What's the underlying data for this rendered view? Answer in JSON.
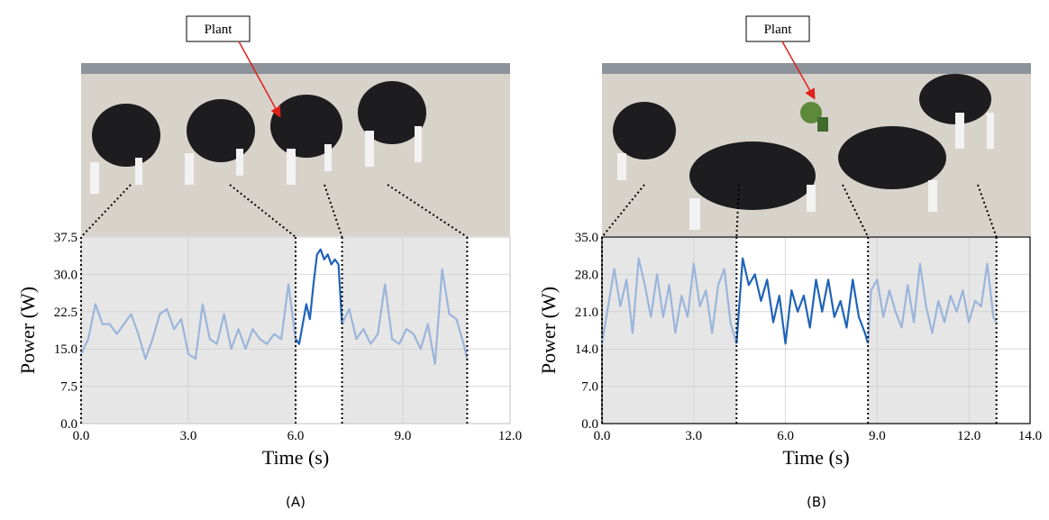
{
  "chart_data": [
    {
      "type": "line",
      "panel_label": "(A)",
      "photo_label": "Plant",
      "xlabel": "Time (s)",
      "ylabel": "Power (W)",
      "xlim": [
        0,
        12
      ],
      "ylim": [
        0,
        37.5
      ],
      "xticks": [
        {
          "value": 0,
          "label": "0.0"
        },
        {
          "value": 3,
          "label": "3.0"
        },
        {
          "value": 6,
          "label": "6.0"
        },
        {
          "value": 9,
          "label": "9.0"
        },
        {
          "value": 12,
          "label": "12.0"
        }
      ],
      "yticks": [
        {
          "value": 0,
          "label": "0.0"
        },
        7.5,
        {
          "value": 15,
          "label": "15.0"
        },
        22.5,
        {
          "value": 30,
          "label": "30.0"
        },
        37.5
      ],
      "grid": true,
      "shaded_regions": [
        [
          0,
          6
        ],
        [
          7.3,
          10.8
        ]
      ],
      "series": [
        {
          "color": "#9bb5db",
          "x": [
            0,
            0.2,
            0.4,
            0.6,
            0.8,
            1.0,
            1.2,
            1.4,
            1.6,
            1.8,
            2.0,
            2.2,
            2.4,
            2.6,
            2.8,
            3.0,
            3.2,
            3.4,
            3.6,
            3.8,
            4.0,
            4.2,
            4.4,
            4.6,
            4.8,
            5.0,
            5.2,
            5.4,
            5.6,
            5.8,
            6.0
          ],
          "values": [
            14,
            17,
            24,
            20,
            20,
            18,
            20,
            22,
            18,
            13,
            17,
            22,
            23,
            19,
            21,
            14,
            13,
            24,
            17,
            16,
            22,
            15,
            19,
            15,
            19,
            17,
            16,
            18,
            17,
            28,
            17
          ]
        },
        {
          "color": "#1f63b8",
          "x": [
            6.0,
            6.1,
            6.2,
            6.3,
            6.4,
            6.5,
            6.6,
            6.7,
            6.8,
            6.9,
            7.0,
            7.1,
            7.2,
            7.3
          ],
          "values": [
            17,
            16,
            20,
            24,
            21,
            28,
            34,
            35,
            33,
            34,
            32,
            33,
            32,
            20
          ]
        },
        {
          "color": "#9bb5db",
          "x": [
            7.3,
            7.5,
            7.7,
            7.9,
            8.1,
            8.3,
            8.5,
            8.7,
            8.9,
            9.1,
            9.3,
            9.5,
            9.7,
            9.9,
            10.1,
            10.3,
            10.5,
            10.7,
            10.8
          ],
          "values": [
            20,
            23,
            17,
            19,
            16,
            18,
            28,
            17,
            16,
            19,
            18,
            15,
            20,
            12,
            31,
            22,
            21,
            16,
            13
          ]
        }
      ]
    },
    {
      "type": "line",
      "panel_label": "(B)",
      "photo_label": "Plant",
      "xlabel": "Time (s)",
      "ylabel": "Power (W)",
      "xlim": [
        0,
        14
      ],
      "ylim": [
        0,
        35
      ],
      "xticks": [
        {
          "value": 0,
          "label": "0.0"
        },
        {
          "value": 3,
          "label": "3.0"
        },
        {
          "value": 6,
          "label": "6.0"
        },
        {
          "value": 9,
          "label": "9.0"
        },
        {
          "value": 12,
          "label": "12.0"
        },
        {
          "value": 14,
          "label": "14.0"
        }
      ],
      "yticks": [
        {
          "value": 0,
          "label": "0.0"
        },
        {
          "value": 7,
          "label": "7.0"
        },
        {
          "value": 14,
          "label": "14.0"
        },
        {
          "value": 21,
          "label": "21.0"
        },
        {
          "value": 28,
          "label": "28.0"
        },
        {
          "value": 35,
          "label": "35.0"
        }
      ],
      "grid": true,
      "shaded_regions": [
        [
          0,
          4.4
        ],
        [
          8.7,
          12.9
        ]
      ],
      "series": [
        {
          "color": "#9bb5db",
          "x": [
            0,
            0.2,
            0.4,
            0.6,
            0.8,
            1.0,
            1.2,
            1.4,
            1.6,
            1.8,
            2.0,
            2.2,
            2.4,
            2.6,
            2.8,
            3.0,
            3.2,
            3.4,
            3.6,
            3.8,
            4.0,
            4.2,
            4.4
          ],
          "values": [
            15,
            22,
            29,
            22,
            27,
            17,
            31,
            26,
            20,
            28,
            20,
            26,
            17,
            24,
            20,
            30,
            22,
            25,
            17,
            26,
            29,
            19,
            15
          ]
        },
        {
          "color": "#1f63b8",
          "x": [
            4.4,
            4.6,
            4.8,
            5.0,
            5.2,
            5.4,
            5.6,
            5.8,
            6.0,
            6.2,
            6.4,
            6.6,
            6.8,
            7.0,
            7.2,
            7.4,
            7.6,
            7.8,
            8.0,
            8.2,
            8.4,
            8.6,
            8.7
          ],
          "values": [
            15,
            31,
            26,
            28,
            23,
            27,
            19,
            24,
            15,
            25,
            21,
            24,
            18,
            27,
            21,
            27,
            20,
            23,
            18,
            27,
            20,
            17,
            15
          ]
        },
        {
          "color": "#9bb5db",
          "x": [
            8.7,
            8.8,
            9.0,
            9.2,
            9.4,
            9.6,
            9.8,
            10.0,
            10.2,
            10.4,
            10.6,
            10.8,
            11.0,
            11.2,
            11.4,
            11.6,
            11.8,
            12.0,
            12.2,
            12.4,
            12.6,
            12.8,
            12.9
          ],
          "values": [
            15,
            25,
            27,
            20,
            25,
            21,
            18,
            26,
            19,
            30,
            22,
            17,
            23,
            19,
            24,
            21,
            25,
            19,
            23,
            22,
            30,
            20,
            19
          ]
        }
      ]
    }
  ]
}
